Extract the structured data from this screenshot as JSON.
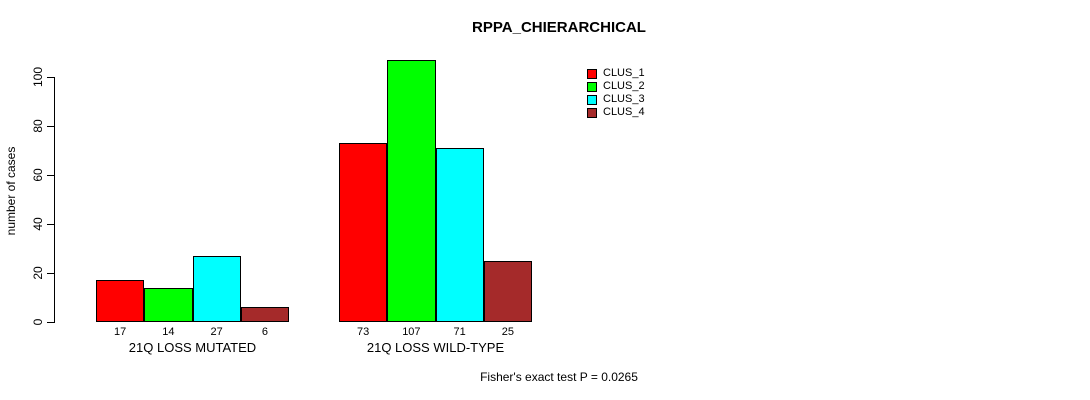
{
  "chart_data": {
    "type": "bar",
    "title": "RPPA_CHIERARCHICAL",
    "ylabel": "number of cases",
    "xlabel": "",
    "categories": [
      "21Q LOSS MUTATED",
      "21Q LOSS WILD-TYPE"
    ],
    "series": [
      {
        "name": "CLUS_1",
        "color": "#FF0000",
        "values": [
          17,
          73
        ]
      },
      {
        "name": "CLUS_2",
        "color": "#00FF00",
        "values": [
          14,
          107
        ]
      },
      {
        "name": "CLUS_3",
        "color": "#00FFFF",
        "values": [
          27,
          71
        ]
      },
      {
        "name": "CLUS_4",
        "color": "#A52A2A",
        "values": [
          6,
          25
        ]
      }
    ],
    "yticks": [
      0,
      20,
      40,
      60,
      80,
      100
    ],
    "ylim": [
      0,
      107
    ],
    "grid": false,
    "bar_value_labels": true,
    "legend_position": "top-right",
    "legend_entries": [
      "CLUS_1",
      "CLUS_2",
      "CLUS_3",
      "CLUS_4"
    ],
    "footer": "Fisher's exact test P = 0.0265"
  }
}
